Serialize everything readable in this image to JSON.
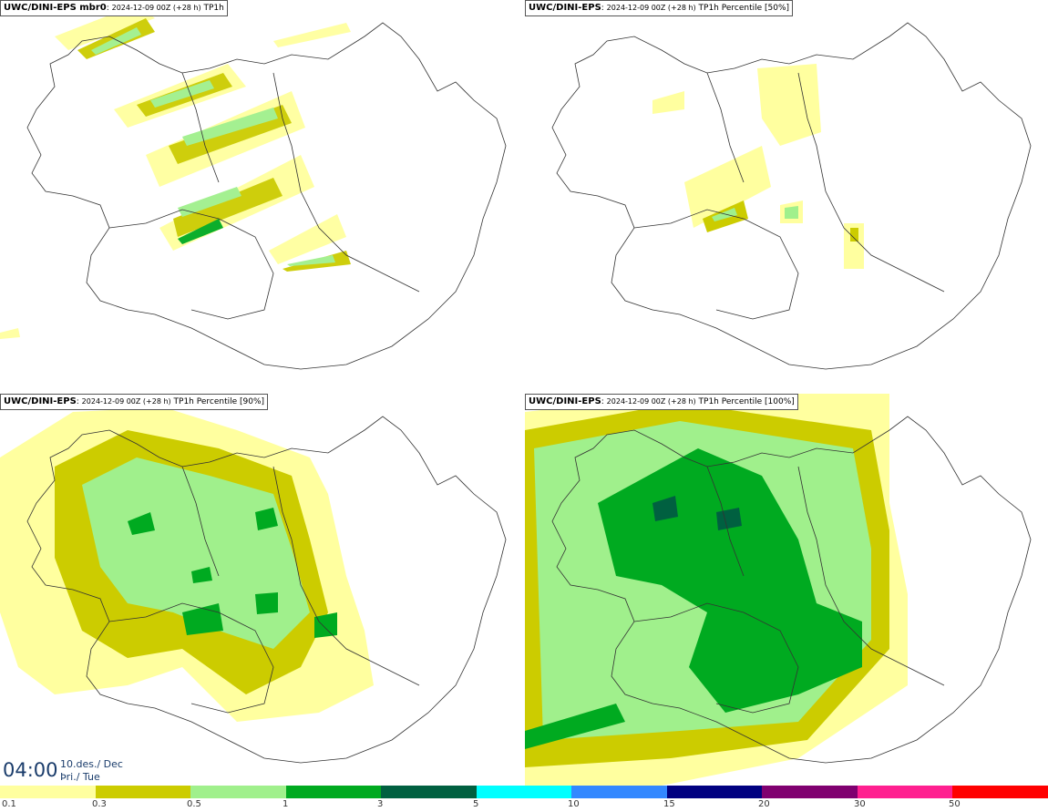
{
  "panels": [
    {
      "model": "UWC/DINI-EPS mbr0",
      "run": "2024-12-09 00Z (+28 h)",
      "field": "TP1h"
    },
    {
      "model": "UWC/DINI-EPS",
      "run": "2024-12-09 00Z (+28 h)",
      "field": "TP1h Percentile [50%]"
    },
    {
      "model": "UWC/DINI-EPS",
      "run": "2024-12-09 00Z (+28 h)",
      "field": "TP1h Percentile [90%]"
    },
    {
      "model": "UWC/DINI-EPS",
      "run": "2024-12-09 00Z (+28 h)",
      "field": "TP1h Percentile [100%]"
    }
  ],
  "valid_time": {
    "time": "04:00",
    "date_line1": "10.des./ Dec",
    "date_line2": "Þri./ Tue"
  },
  "legend": {
    "colors": [
      "#ffff9f",
      "#cccc00",
      "#a0f08c",
      "#00aa20",
      "#006040",
      "#00ffff",
      "#3388ff",
      "#000080",
      "#800070",
      "#ff2090",
      "#ff0000"
    ],
    "ticks": [
      "0.1",
      "0.3",
      "0.5",
      "1",
      "3",
      "5",
      "10",
      "15",
      "20",
      "30",
      "50"
    ]
  }
}
